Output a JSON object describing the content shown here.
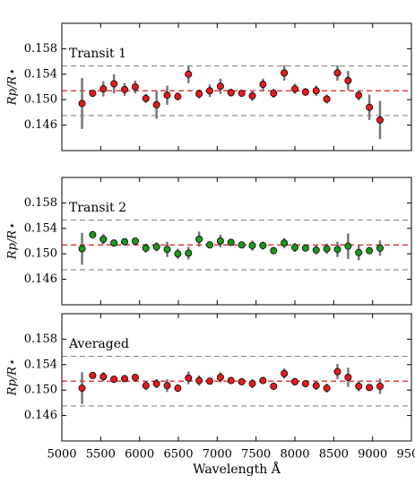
{
  "chart_data": [
    {
      "type": "scatter",
      "annotation": "Transit 1",
      "y_label": "Rp/R⋆",
      "color": "#e41a1c",
      "x": [
        5260,
        5397,
        5534,
        5671,
        5808,
        5945,
        6082,
        6219,
        6356,
        6493,
        6630,
        6767,
        6904,
        7041,
        7178,
        7315,
        7452,
        7589,
        7726,
        7863,
        8000,
        8137,
        8274,
        8411,
        8548,
        8685,
        8822,
        8959,
        9096
      ],
      "values": [
        0.1494,
        0.151,
        0.1517,
        0.1525,
        0.1516,
        0.152,
        0.1502,
        0.1492,
        0.1507,
        0.1505,
        0.154,
        0.1509,
        0.1514,
        0.1521,
        0.1511,
        0.151,
        0.1506,
        0.1524,
        0.151,
        0.1542,
        0.1517,
        0.1512,
        0.1514,
        0.1501,
        0.1542,
        0.153,
        0.1507,
        0.1488,
        0.1468
      ],
      "errors": [
        0.004,
        0.0005,
        0.0012,
        0.0015,
        0.001,
        0.001,
        0.0007,
        0.0022,
        0.0015,
        0.0006,
        0.0014,
        0.0007,
        0.001,
        0.0012,
        0.0006,
        0.0005,
        0.0008,
        0.0009,
        0.0007,
        0.0012,
        0.0008,
        0.0006,
        0.0008,
        0.0007,
        0.0012,
        0.0015,
        0.0008,
        0.002,
        0.003
      ],
      "hlines": [
        {
          "value": 0.1553,
          "color": "#888888"
        },
        {
          "value": 0.1514,
          "color": "#e41a1c"
        },
        {
          "value": 0.1475,
          "color": "#888888"
        }
      ],
      "xlim": [
        5000,
        9500
      ],
      "xticks": [
        5000,
        5500,
        6000,
        6500,
        7000,
        7500,
        8000,
        8500,
        9000,
        9500
      ],
      "ylim": [
        0.142,
        0.162
      ],
      "yticks": [
        0.146,
        {
          "value": 0.15,
          "label": "0.150"
        },
        0.154,
        0.158
      ]
    },
    {
      "type": "scatter",
      "annotation": "Transit 2",
      "y_label": "Rp/R⋆",
      "color": "#1a9a1a",
      "x": [
        5260,
        5397,
        5534,
        5671,
        5808,
        5945,
        6082,
        6219,
        6356,
        6493,
        6630,
        6767,
        6904,
        7041,
        7178,
        7315,
        7452,
        7589,
        7726,
        7863,
        8000,
        8137,
        8274,
        8411,
        8548,
        8685,
        8822,
        8959,
        9096
      ],
      "values": [
        0.1508,
        0.153,
        0.1523,
        0.1517,
        0.1519,
        0.152,
        0.1509,
        0.1511,
        0.1507,
        0.15,
        0.1501,
        0.1523,
        0.1514,
        0.152,
        0.1518,
        0.1514,
        0.1513,
        0.1513,
        0.1505,
        0.1517,
        0.151,
        0.1509,
        0.1506,
        0.1508,
        0.1507,
        0.1512,
        0.1502,
        0.1505,
        0.1509
      ],
      "errors": [
        0.0025,
        0.0004,
        0.0008,
        0.0004,
        0.0005,
        0.0005,
        0.0007,
        0.0007,
        0.0012,
        0.0008,
        0.001,
        0.0012,
        0.0004,
        0.001,
        0.0005,
        0.0003,
        0.0008,
        0.0006,
        0.0004,
        0.0008,
        0.0007,
        0.0005,
        0.0007,
        0.0008,
        0.0012,
        0.002,
        0.0012,
        0.0005,
        0.0012
      ],
      "hlines": [
        {
          "value": 0.1553,
          "color": "#888888"
        },
        {
          "value": 0.1514,
          "color": "#e41a1c"
        },
        {
          "value": 0.1475,
          "color": "#888888"
        }
      ],
      "xlim": [
        5000,
        9500
      ],
      "xticks": [
        5000,
        5500,
        6000,
        6500,
        7000,
        7500,
        8000,
        8500,
        9000,
        9500
      ],
      "ylim": [
        0.142,
        0.162
      ],
      "yticks": [
        0.146,
        {
          "value": 0.15,
          "label": "0.150"
        },
        0.154,
        0.158
      ]
    },
    {
      "type": "scatter",
      "annotation": "Averaged",
      "y_label": "Rp/R⋆",
      "x_label": "Wavelength Å",
      "color": "#e41a1c",
      "x": [
        5260,
        5397,
        5534,
        5671,
        5808,
        5945,
        6082,
        6219,
        6356,
        6493,
        6630,
        6767,
        6904,
        7041,
        7178,
        7315,
        7452,
        7589,
        7726,
        7863,
        8000,
        8137,
        8274,
        8411,
        8548,
        8685,
        8822,
        8959,
        9096
      ],
      "values": [
        0.1503,
        0.1523,
        0.1521,
        0.1517,
        0.1518,
        0.152,
        0.1507,
        0.151,
        0.1507,
        0.1503,
        0.1519,
        0.1515,
        0.1514,
        0.152,
        0.1515,
        0.1513,
        0.151,
        0.1515,
        0.1506,
        0.1526,
        0.1513,
        0.151,
        0.1507,
        0.1503,
        0.1529,
        0.152,
        0.1506,
        0.1504,
        0.1506
      ],
      "errors": [
        0.0025,
        0.0004,
        0.0007,
        0.0004,
        0.0004,
        0.0005,
        0.0007,
        0.0007,
        0.001,
        0.0006,
        0.001,
        0.0008,
        0.0004,
        0.0008,
        0.0004,
        0.0004,
        0.0007,
        0.0005,
        0.0004,
        0.0008,
        0.0006,
        0.0004,
        0.0007,
        0.0007,
        0.0012,
        0.0015,
        0.0008,
        0.0005,
        0.0012
      ],
      "hlines": [
        {
          "value": 0.1553,
          "color": "#888888"
        },
        {
          "value": 0.1514,
          "color": "#e41a1c"
        },
        {
          "value": 0.1475,
          "color": "#888888"
        }
      ],
      "xlim": [
        5000,
        9500
      ],
      "xticks": [
        5000,
        5500,
        6000,
        6500,
        7000,
        7500,
        8000,
        8500,
        9000,
        9500
      ],
      "ylim": [
        0.142,
        0.162
      ],
      "yticks": [
        0.146,
        {
          "value": 0.15,
          "label": "0.150"
        },
        0.154,
        0.158
      ]
    }
  ]
}
